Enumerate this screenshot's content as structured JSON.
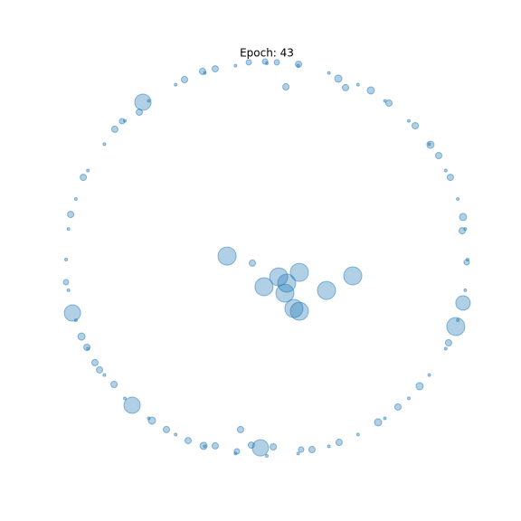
{
  "chart_data": {
    "type": "scatter",
    "title": "Epoch: 43",
    "color": "#1f77b4",
    "xlim": [
      -1.1,
      1.1
    ],
    "ylim": [
      -1.1,
      1.1
    ],
    "x": [
      -0.198,
      -0.072,
      0.059,
      0.162,
      0.099,
      -0.014,
      0.09,
      0.297,
      0.428,
      0.135,
      0.162,
      0.095,
      -0.131,
      -0.077,
      -0.032,
      0.032,
      -0.617,
      -0.968,
      -0.671,
      0.941,
      0.977,
      0.356,
      0.392,
      0.518,
      0.608,
      0.739,
      0.815,
      0.856,
      0.914,
      0.977,
      0.973,
      0.995,
      0.905,
      0.761,
      0.653,
      0.554,
      0.36,
      0.225,
      0.171,
      -0.149,
      -0.257,
      -0.315,
      -0.392,
      -0.5,
      -0.572,
      -0.761,
      -0.833,
      -0.856,
      -0.896,
      -0.923,
      -1.0,
      -0.977,
      -0.914,
      -0.757,
      -0.721,
      -0.635,
      -0.41,
      -0.32,
      -0.257,
      -0.09,
      -0.009,
      0.05,
      0.158,
      1,
      0.988,
      0.951,
      0.891,
      0.809,
      0.707,
      0.588,
      0.454,
      0.309,
      0.156,
      0,
      -0.156,
      -0.309,
      -0.454,
      -0.588,
      -0.707,
      -0.809,
      -0.891,
      -0.951,
      -0.988,
      -1,
      -0.988,
      -0.951,
      -0.891,
      -0.809,
      -0.707,
      -0.588,
      -0.454,
      -0.309,
      -0.156,
      0,
      0.156,
      0.309,
      0.454,
      0.588,
      0.707,
      0.809,
      0.891,
      0.951,
      0.988
    ],
    "y": [
      0.018,
      -0.018,
      -0.088,
      -0.065,
      -0.12,
      -0.138,
      -0.171,
      -0.157,
      -0.083,
      -0.249,
      -0.263,
      0.88,
      -0.866,
      -0.945,
      -0.959,
      -0.954,
      0.802,
      -0.272,
      -0.742,
      -0.341,
      -0.221,
      0.922,
      0.876,
      0.862,
      0.797,
      0.682,
      0.585,
      0.53,
      0.419,
      0.217,
      0.147,
      -0.014,
      -0.424,
      -0.645,
      -0.751,
      -0.829,
      -0.931,
      -0.968,
      -0.968,
      -0.977,
      -0.949,
      -0.949,
      -0.922,
      -0.866,
      -0.82,
      -0.636,
      -0.562,
      -0.525,
      -0.447,
      -0.392,
      -0.115,
      0.23,
      0.419,
      0.664,
      0.705,
      0.751,
      0.917,
      0.959,
      0.972,
      1.005,
      1.009,
      1.005,
      0.995,
      0,
      0.156,
      0.309,
      0.454,
      0.588,
      0.707,
      0.809,
      0.891,
      0.951,
      0.988,
      1,
      0.988,
      0.951,
      0.891,
      0.809,
      0.707,
      0.588,
      0.454,
      0.309,
      0.156,
      0,
      -0.156,
      -0.309,
      -0.454,
      -0.588,
      -0.707,
      -0.809,
      -0.891,
      -0.951,
      -0.988,
      -1,
      -0.988,
      -0.951,
      -0.891,
      -0.809,
      -0.707,
      -0.588,
      -0.454,
      -0.309,
      -0.156
    ],
    "sizes": [
      10,
      3.5,
      10,
      10,
      10,
      10,
      10,
      10,
      10,
      10,
      10,
      3.5,
      3.5,
      3.5,
      9,
      3.5,
      9,
      9,
      9,
      10,
      8,
      4,
      3.5,
      4,
      3.5,
      3.5,
      4,
      3.5,
      3.5,
      4,
      3.5,
      3,
      3.5,
      4,
      3.5,
      4,
      3.5,
      3.5,
      3,
      3,
      3.5,
      4,
      3.5,
      3.5,
      4,
      3.5,
      3.5,
      3.5,
      3.5,
      4,
      3,
      3.5,
      3.5,
      3.5,
      3,
      3.5,
      3.5,
      3.5,
      3.5,
      3,
      3,
      3,
      3.5,
      1.5,
      1.5,
      1.5,
      1.5,
      1.5,
      1.5,
      1.5,
      1.5,
      1.5,
      1.5,
      1.5,
      1.5,
      1.5,
      1.5,
      1.5,
      1.5,
      1.5,
      1.5,
      1.5,
      1.5,
      1.5,
      1.5,
      1.5,
      1.5,
      1.5,
      1.5,
      1.5,
      1.5,
      1.5,
      1.5,
      1.5,
      1.5,
      1.5,
      1.5,
      1.5,
      1.5,
      1.5,
      1.5,
      1.5,
      1.5
    ]
  }
}
